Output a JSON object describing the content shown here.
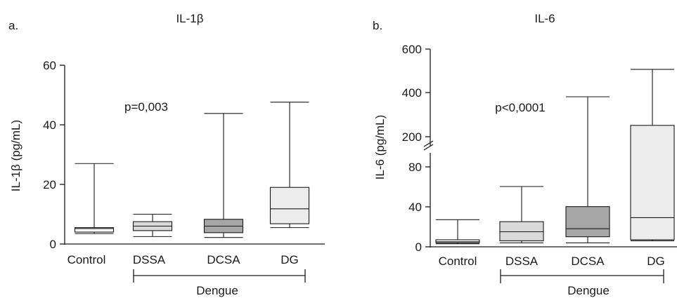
{
  "chart_data": [
    {
      "type": "box",
      "panel_label": "a.",
      "title": "IL-1β",
      "ylabel": "IL-1β (pg/mL)",
      "ylim": [
        0,
        60
      ],
      "yticks": [
        "0",
        "20",
        "40",
        "60"
      ],
      "categories": [
        "Control",
        "DSSA",
        "DCSA",
        "DG"
      ],
      "boxes": [
        {
          "min": 3.5,
          "q1": 4.0,
          "median": 5.2,
          "q3": 5.5,
          "max": 27,
          "fill": "#ffffff"
        },
        {
          "min": 2.5,
          "q1": 4.5,
          "median": 6.0,
          "q3": 7.5,
          "max": 10,
          "fill": "#d9d9d9"
        },
        {
          "min": 2.2,
          "q1": 3.8,
          "median": 6.0,
          "q3": 8.3,
          "max": 43.8,
          "fill": "#a6a6a6"
        },
        {
          "min": 5.5,
          "q1": 6.8,
          "median": 11.8,
          "q3": 19,
          "max": 47.6,
          "fill": "#ececec"
        }
      ],
      "annotation": "p=0,003",
      "group_label": "Dengue"
    },
    {
      "type": "box",
      "panel_label": "b.",
      "title": "IL-6",
      "ylabel": "IL-6 (pg/mL)",
      "y_axis_break": true,
      "ylim_lower": [
        0,
        90
      ],
      "ylim_upper": [
        150,
        600
      ],
      "yticks_lower": [
        "0",
        "40",
        "80"
      ],
      "yticks_upper": [
        "200",
        "400",
        "600"
      ],
      "categories": [
        "Control",
        "DSSA",
        "DCSA",
        "DG"
      ],
      "boxes": [
        {
          "min": 3,
          "q1": 4,
          "median": 5,
          "q3": 7,
          "max": 27,
          "fill": "#ffffff"
        },
        {
          "min": 4,
          "q1": 6,
          "median": 15,
          "q3": 25,
          "max": 60,
          "fill": "#d9d9d9"
        },
        {
          "min": 4,
          "q1": 10,
          "median": 18,
          "q3": 40,
          "max": 400,
          "fill": "#a6a6a6"
        },
        {
          "min": 6,
          "q1": 7,
          "median": 29,
          "q3": 280,
          "max": 515,
          "fill": "#ececec"
        }
      ],
      "annotation": "p<0,0001",
      "group_label": "Dengue"
    }
  ]
}
